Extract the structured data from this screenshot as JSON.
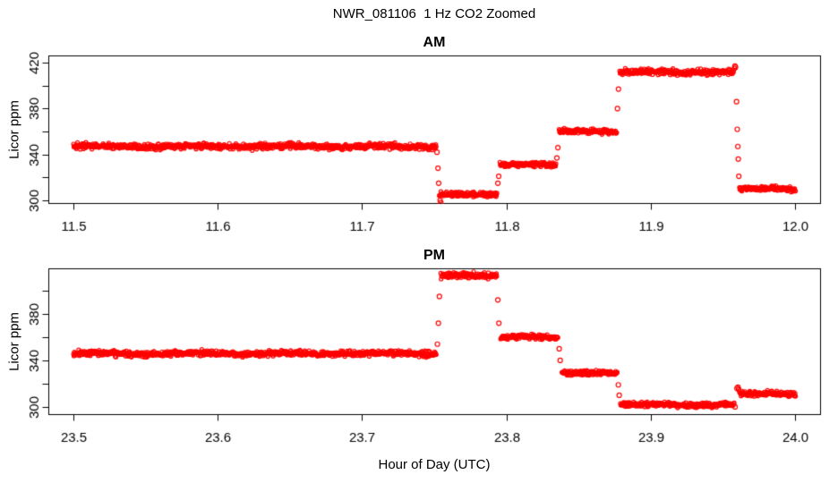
{
  "title": "NWR_081106  1 Hz CO2 Zoomed",
  "xlabel": "Hour of Day (UTC)",
  "colors": {
    "points": "#FF0000",
    "axis": "#000000",
    "text": "#000000",
    "background": "#FFFFFF"
  },
  "chart_data": [
    {
      "type": "scatter",
      "panel": "AM",
      "title": "AM",
      "ylabel": "Licor ppm",
      "marker": "open-circle",
      "sample_rate_hz": 1,
      "grid": false,
      "legend": null,
      "xlim": [
        11.4826,
        12.0174
      ],
      "ylim": [
        297.7,
        426.3
      ],
      "xticks": [
        11.5,
        11.6,
        11.7,
        11.8,
        11.9,
        12.0
      ],
      "xtick_labels": [
        "11.5",
        "11.6",
        "11.7",
        "11.8",
        "11.9",
        "12.0"
      ],
      "yticks": [
        300,
        320,
        340,
        360,
        380,
        400,
        420
      ],
      "ytick_labels_shown": [
        300,
        340,
        380,
        420
      ],
      "segments": [
        {
          "t0": 11.5,
          "t1": 11.7515,
          "value": 347,
          "sd": 1.2
        },
        {
          "t0": 11.7535,
          "t1": 11.7935,
          "value": 305,
          "sd": 1.0
        },
        {
          "t0": 11.7955,
          "t1": 11.8345,
          "value": 331,
          "sd": 1.0
        },
        {
          "t0": 11.8365,
          "t1": 11.8765,
          "value": 360,
          "sd": 1.0
        },
        {
          "t0": 11.8785,
          "t1": 11.9575,
          "value": 412,
          "sd": 1.2
        },
        {
          "t0": 11.9615,
          "t1": 12.0005,
          "value": 310,
          "sd": 1.0
        }
      ],
      "transition_points": [
        [
          11.7519,
          342
        ],
        [
          11.7526,
          328
        ],
        [
          11.7531,
          315
        ],
        [
          11.7541,
          300
        ],
        [
          11.7546,
          298
        ],
        [
          11.7941,
          315
        ],
        [
          11.7947,
          321
        ],
        [
          11.835,
          337
        ],
        [
          11.8357,
          346
        ],
        [
          11.877,
          380
        ],
        [
          11.8777,
          397
        ],
        [
          11.958,
          415
        ],
        [
          11.9584,
          417
        ],
        [
          11.9588,
          416
        ],
        [
          11.9595,
          386
        ],
        [
          11.96,
          362
        ],
        [
          11.9604,
          347
        ],
        [
          11.9607,
          336
        ],
        [
          11.9611,
          321
        ]
      ]
    },
    {
      "type": "scatter",
      "panel": "PM",
      "title": "PM",
      "ylabel": "Licor ppm",
      "marker": "open-circle",
      "sample_rate_hz": 1,
      "grid": false,
      "legend": null,
      "xlim": [
        23.4826,
        24.0174
      ],
      "ylim": [
        293.8,
        419.2
      ],
      "xticks": [
        23.5,
        23.6,
        23.7,
        23.8,
        23.9,
        24.0
      ],
      "xtick_labels": [
        "23.5",
        "23.6",
        "23.7",
        "23.8",
        "23.9",
        "24.0"
      ],
      "yticks": [
        300,
        320,
        340,
        360,
        380,
        400
      ],
      "ytick_labels_shown": [
        300,
        340,
        380
      ],
      "segments": [
        {
          "t0": 23.5,
          "t1": 23.7515,
          "value": 346,
          "sd": 1.2
        },
        {
          "t0": 23.7545,
          "t1": 23.7935,
          "value": 413,
          "sd": 1.2
        },
        {
          "t0": 23.796,
          "t1": 23.836,
          "value": 360,
          "sd": 1.0
        },
        {
          "t0": 23.8385,
          "t1": 23.877,
          "value": 329,
          "sd": 1.0
        },
        {
          "t0": 23.879,
          "t1": 23.958,
          "value": 302,
          "sd": 1.0
        },
        {
          "t0": 23.9615,
          "t1": 24.0005,
          "value": 311,
          "sd": 1.0
        }
      ],
      "transition_points": [
        [
          23.7522,
          354
        ],
        [
          23.7529,
          372
        ],
        [
          23.7536,
          395
        ],
        [
          23.7941,
          392
        ],
        [
          23.7948,
          372
        ],
        [
          23.8366,
          350
        ],
        [
          23.8373,
          340
        ],
        [
          23.8776,
          319
        ],
        [
          23.8782,
          310
        ],
        [
          23.9585,
          300
        ],
        [
          23.9598,
          316
        ],
        [
          23.9605,
          317
        ],
        [
          23.961,
          315
        ]
      ]
    }
  ]
}
